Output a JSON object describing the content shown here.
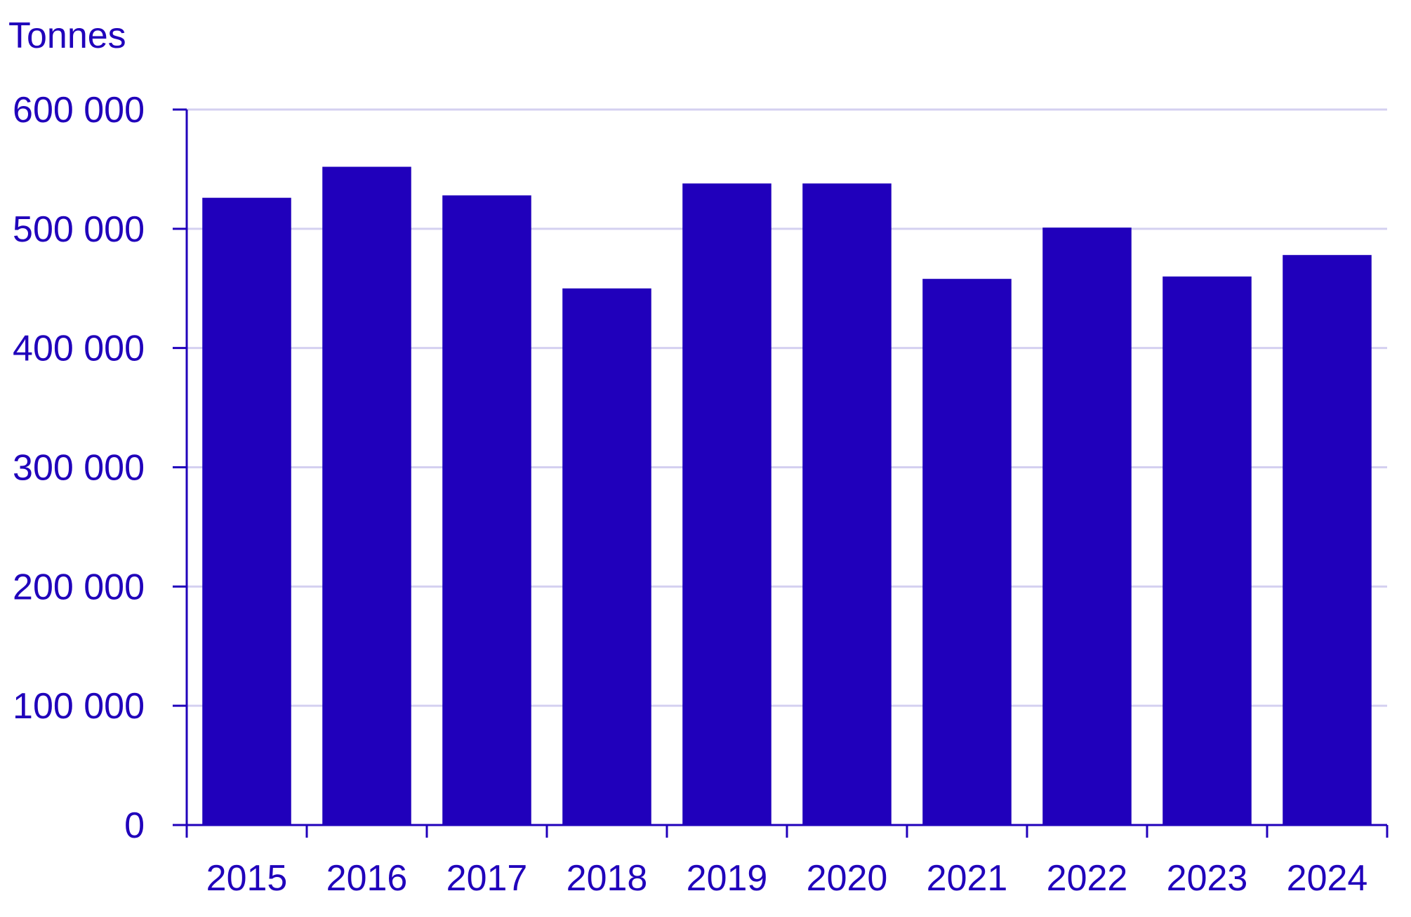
{
  "chart_data": {
    "type": "bar",
    "title": "",
    "ylabel": "Tonnes",
    "xlabel": "",
    "categories": [
      "2015",
      "2016",
      "2017",
      "2018",
      "2019",
      "2020",
      "2021",
      "2022",
      "2023",
      "2024"
    ],
    "values": [
      526000,
      552000,
      528000,
      450000,
      538000,
      538000,
      458000,
      501000,
      460000,
      478000
    ],
    "ylim": [
      0,
      600000
    ],
    "yticks": [
      0,
      100000,
      200000,
      300000,
      400000,
      500000,
      600000
    ],
    "ytick_labels": [
      "0",
      "100 000",
      "200 000",
      "300 000",
      "400 000",
      "500 000",
      "600 000"
    ],
    "grid": true,
    "legend": "none",
    "colors": {
      "bar": "#2000BB",
      "axis": "#2000BB",
      "text": "#2000BB",
      "grid": "#D4D0F0"
    }
  }
}
